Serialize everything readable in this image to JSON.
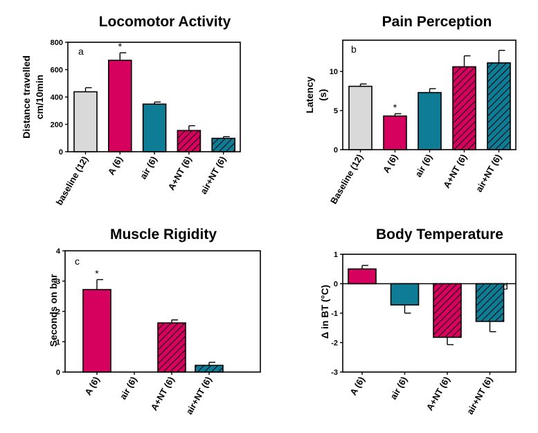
{
  "colors": {
    "baseline": "#d9d9d9",
    "A": "#d6005e",
    "air": "#0f7c95",
    "axis": "#000000"
  },
  "chart_data": [
    {
      "panel": "a",
      "type": "bar",
      "title": "Locomotor Activity",
      "ylabel_lines": [
        "Distance travelled",
        "cm/10min"
      ],
      "ylim": [
        0,
        800
      ],
      "yticks": [
        0,
        200,
        400,
        600,
        800
      ],
      "categories": [
        "baseline (12)",
        "A (6)",
        "air (6)",
        "A+NT (6)",
        "air+NT (6)"
      ],
      "values": [
        438,
        668,
        348,
        155,
        98
      ],
      "errors": [
        30,
        55,
        15,
        35,
        12
      ],
      "colors": [
        "#d9d9d9",
        "#d6005e",
        "#0f7c95",
        "#d6005e",
        "#0f7c95"
      ],
      "hatched": [
        false,
        false,
        false,
        true,
        true
      ],
      "significant": [
        false,
        true,
        false,
        false,
        false
      ],
      "annotation": "*"
    },
    {
      "panel": "b",
      "type": "bar",
      "title": "Pain Perception",
      "ylabel_lines": [
        "Latency",
        "(s)"
      ],
      "ylim": [
        0,
        14
      ],
      "yticks": [
        0,
        5,
        10
      ],
      "categories": [
        "Baseline (12)",
        "A (6)",
        "air (6)",
        "A+NT (6)",
        "air+NT (6)"
      ],
      "values": [
        8.1,
        4.3,
        7.3,
        10.6,
        11.1
      ],
      "errors": [
        0.3,
        0.3,
        0.5,
        1.4,
        1.6
      ],
      "colors": [
        "#d9d9d9",
        "#d6005e",
        "#0f7c95",
        "#d6005e",
        "#0f7c95"
      ],
      "hatched": [
        false,
        false,
        false,
        true,
        true
      ],
      "significant": [
        false,
        true,
        false,
        false,
        false
      ],
      "annotation": "*"
    },
    {
      "panel": "c",
      "type": "bar",
      "title": "Muscle Rigidity",
      "ylabel_lines": [
        "Seconds on bar"
      ],
      "ylim": [
        0,
        4
      ],
      "yticks": [
        0,
        1,
        2,
        3,
        4
      ],
      "categories": [
        "A (6)",
        "air (6)",
        "A+NT (6)",
        "air+NT (6)"
      ],
      "values": [
        2.72,
        0,
        1.62,
        0.22
      ],
      "errors": [
        0.33,
        0,
        0.1,
        0.1
      ],
      "colors": [
        "#d6005e",
        "#0f7c95",
        "#d6005e",
        "#0f7c95"
      ],
      "hatched": [
        false,
        false,
        true,
        true
      ],
      "significant": [
        true,
        false,
        false,
        false
      ],
      "annotation": "*"
    },
    {
      "panel": "d",
      "type": "bar",
      "title": "Body Temperature",
      "ylabel_lines": [
        "Δ in BT (°C)"
      ],
      "ylim": [
        -3,
        1
      ],
      "yticks": [
        -3,
        -2,
        -1,
        0,
        1
      ],
      "categories": [
        "A (6)",
        "air (6)",
        "A+NT (6)",
        "air+NT (6)"
      ],
      "values": [
        0.5,
        -0.72,
        -1.82,
        -1.28
      ],
      "errors": [
        0.12,
        0.28,
        0.25,
        0.35
      ],
      "colors": [
        "#d6005e",
        "#0f7c95",
        "#d6005e",
        "#0f7c95"
      ],
      "hatched": [
        false,
        false,
        true,
        true
      ],
      "significant": [
        false,
        false,
        false,
        false
      ],
      "annotation": "*"
    }
  ]
}
